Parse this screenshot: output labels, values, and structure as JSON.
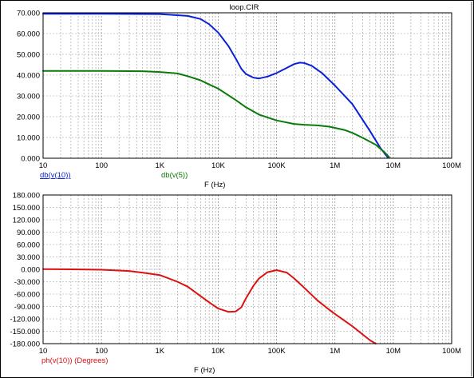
{
  "window": {
    "title": "loop.CIR"
  },
  "chart_data": [
    {
      "type": "line",
      "x_scale": "log",
      "xlim": [
        10,
        100000000
      ],
      "ylim": [
        0,
        70
      ],
      "grid": true,
      "title": "loop.CIR",
      "xlabel": "F (Hz)",
      "x_ticks": [
        10,
        100,
        1000,
        10000,
        100000,
        1000000,
        10000000,
        100000000
      ],
      "x_tick_labels": [
        "10",
        "100",
        "1K",
        "10K",
        "100K",
        "1M",
        "10M",
        "100M"
      ],
      "y_ticks": [
        0,
        10,
        20,
        30,
        40,
        50,
        60,
        70
      ],
      "y_tick_labels": [
        "0.000",
        "10.000",
        "20.000",
        "30.000",
        "40.000",
        "50.000",
        "60.000",
        "70.000"
      ],
      "series": [
        {
          "name": "db(v(10))",
          "color": "#0a20d8",
          "points": [
            [
              10,
              69.5
            ],
            [
              100,
              69.5
            ],
            [
              1000,
              69.4
            ],
            [
              3000,
              68.5
            ],
            [
              5000,
              67.0
            ],
            [
              7000,
              64.5
            ],
            [
              10000,
              60.5
            ],
            [
              15000,
              54.0
            ],
            [
              20000,
              48.0
            ],
            [
              25000,
              43.0
            ],
            [
              30000,
              40.5
            ],
            [
              40000,
              38.8
            ],
            [
              50000,
              38.4
            ],
            [
              70000,
              39.3
            ],
            [
              100000,
              41.0
            ],
            [
              150000,
              43.5
            ],
            [
              200000,
              45.3
            ],
            [
              250000,
              46.0
            ],
            [
              300000,
              45.8
            ],
            [
              400000,
              44.5
            ],
            [
              600000,
              41.0
            ],
            [
              1000000,
              35.0
            ],
            [
              2000000,
              26.0
            ],
            [
              4000000,
              13.0
            ],
            [
              6000000,
              5.0
            ],
            [
              8000000,
              0.5
            ]
          ]
        },
        {
          "name": "db(v(5))",
          "color": "#0a7a0a",
          "points": [
            [
              10,
              42.0
            ],
            [
              100,
              42.0
            ],
            [
              500,
              41.9
            ],
            [
              1000,
              41.5
            ],
            [
              2000,
              40.8
            ],
            [
              3000,
              39.5
            ],
            [
              5000,
              37.5
            ],
            [
              7000,
              35.5
            ],
            [
              10000,
              33.5
            ],
            [
              20000,
              28.0
            ],
            [
              30000,
              24.5
            ],
            [
              50000,
              21.0
            ],
            [
              100000,
              18.2
            ],
            [
              200000,
              16.5
            ],
            [
              300000,
              16.1
            ],
            [
              500000,
              15.8
            ],
            [
              800000,
              15.2
            ],
            [
              1000000,
              14.6
            ],
            [
              1500000,
              13.5
            ],
            [
              2000000,
              12.2
            ],
            [
              3000000,
              9.8
            ],
            [
              5000000,
              6.5
            ],
            [
              7000000,
              3.0
            ],
            [
              8500000,
              0.5
            ]
          ]
        }
      ]
    },
    {
      "type": "line",
      "x_scale": "log",
      "xlim": [
        10,
        100000000
      ],
      "ylim": [
        -180,
        180
      ],
      "grid": true,
      "xlabel": "F (Hz)",
      "x_ticks": [
        10,
        100,
        1000,
        10000,
        100000,
        1000000,
        10000000,
        100000000
      ],
      "x_tick_labels": [
        "10",
        "100",
        "1K",
        "10K",
        "100K",
        "1M",
        "10M",
        "100M"
      ],
      "y_ticks": [
        180,
        150,
        120,
        90,
        60,
        30,
        0,
        -30,
        -60,
        -90,
        -120,
        -150,
        -180
      ],
      "y_tick_labels": [
        "180.000",
        "150.000",
        "120.000",
        "90.000",
        "60.000",
        "30.000",
        "0.000",
        "-30.000",
        "-60.000",
        "-90.000",
        "-120.000",
        "-150.000",
        "-180.000"
      ],
      "series": [
        {
          "name": "ph(v(10)) (Degrees)",
          "color": "#dd1111",
          "points": [
            [
              10,
              0.5
            ],
            [
              30,
              0
            ],
            [
              100,
              -1
            ],
            [
              300,
              -4
            ],
            [
              500,
              -8
            ],
            [
              1000,
              -14
            ],
            [
              2000,
              -30
            ],
            [
              3000,
              -42
            ],
            [
              5000,
              -65
            ],
            [
              7000,
              -80
            ],
            [
              10000,
              -95
            ],
            [
              15000,
              -103
            ],
            [
              20000,
              -102
            ],
            [
              25000,
              -92
            ],
            [
              30000,
              -70
            ],
            [
              40000,
              -40
            ],
            [
              50000,
              -22
            ],
            [
              70000,
              -7
            ],
            [
              100000,
              -2
            ],
            [
              150000,
              -8
            ],
            [
              200000,
              -22
            ],
            [
              300000,
              -45
            ],
            [
              500000,
              -75
            ],
            [
              800000,
              -98
            ],
            [
              1000000,
              -108
            ],
            [
              2000000,
              -138
            ],
            [
              3000000,
              -158
            ],
            [
              4000000,
              -172
            ],
            [
              5000000,
              -182
            ]
          ]
        }
      ]
    }
  ]
}
